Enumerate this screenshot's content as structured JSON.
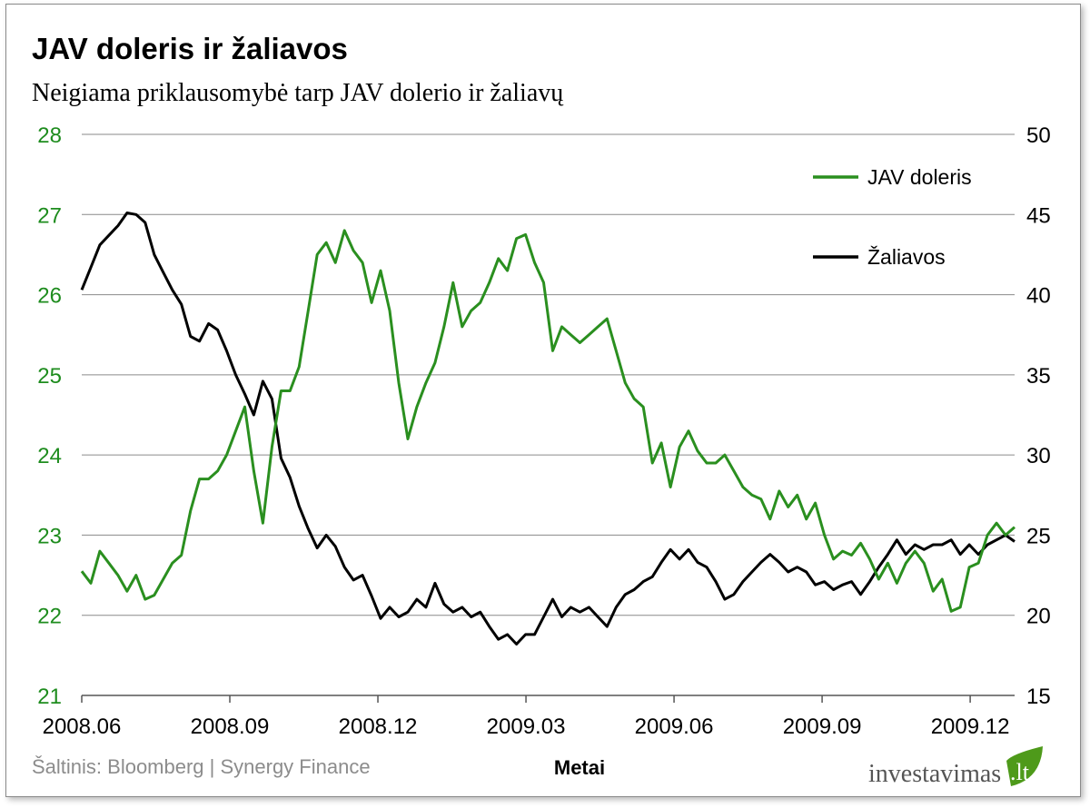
{
  "chart_data": {
    "type": "line",
    "title": "JAV doleris ir žaliavos",
    "subtitle": "Neigiama priklausomybė tarp JAV dolerio ir žaliavų",
    "xlabel": "Metai",
    "x_unit": "months since 2008.06 (values equally spaced, ~weekly)",
    "xlim": [
      0,
      18.9
    ],
    "x_ticks": [
      {
        "value": 0,
        "label": "2008.06"
      },
      {
        "value": 3,
        "label": "2008.09"
      },
      {
        "value": 6,
        "label": "2008.12"
      },
      {
        "value": 9,
        "label": "2009.03"
      },
      {
        "value": 12,
        "label": "2009.06"
      },
      {
        "value": 15,
        "label": "2009.09"
      },
      {
        "value": 18,
        "label": "2009.12"
      }
    ],
    "y_left": {
      "ylim": [
        21,
        28
      ],
      "ticks": [
        "21",
        "22",
        "23",
        "24",
        "25",
        "26",
        "27",
        "28"
      ],
      "color": "#1e8c1e"
    },
    "y_right": {
      "ylim": [
        15,
        50
      ],
      "ticks": [
        "15",
        "20",
        "25",
        "30",
        "35",
        "40",
        "45",
        "50"
      ],
      "color": "#000000"
    },
    "grid": true,
    "legend_position": "top-right",
    "series": [
      {
        "name": "JAV doleris",
        "axis": "left",
        "color": "#2a8f1f",
        "values": [
          22.55,
          22.4,
          22.8,
          22.65,
          22.5,
          22.3,
          22.5,
          22.2,
          22.25,
          22.45,
          22.65,
          22.75,
          23.3,
          23.7,
          23.7,
          23.8,
          24.0,
          24.3,
          24.6,
          23.8,
          23.15,
          24.1,
          24.8,
          24.8,
          25.1,
          25.8,
          26.5,
          26.65,
          26.4,
          26.8,
          26.55,
          26.4,
          25.9,
          26.3,
          25.8,
          24.9,
          24.2,
          24.6,
          24.9,
          25.15,
          25.6,
          26.15,
          25.6,
          25.8,
          25.9,
          26.15,
          26.45,
          26.3,
          26.7,
          26.75,
          26.4,
          26.15,
          25.3,
          25.6,
          25.5,
          25.4,
          25.5,
          25.6,
          25.7,
          25.3,
          24.9,
          24.7,
          24.6,
          23.9,
          24.15,
          23.6,
          24.1,
          24.3,
          24.05,
          23.9,
          23.9,
          24.0,
          23.8,
          23.6,
          23.5,
          23.45,
          23.2,
          23.55,
          23.35,
          23.5,
          23.2,
          23.4,
          23.0,
          22.7,
          22.8,
          22.75,
          22.9,
          22.7,
          22.45,
          22.65,
          22.4,
          22.65,
          22.8,
          22.65,
          22.3,
          22.45,
          22.05,
          22.1,
          22.6,
          22.65,
          23.0,
          23.15,
          23.0,
          23.1
        ]
      },
      {
        "name": "Žaliavos",
        "axis": "right",
        "color": "#000000",
        "values": [
          40.3,
          41.7,
          43.1,
          43.7,
          44.3,
          45.1,
          45.0,
          44.5,
          42.5,
          41.4,
          40.3,
          39.4,
          37.4,
          37.1,
          38.2,
          37.8,
          36.5,
          35.0,
          33.8,
          32.5,
          34.6,
          33.5,
          29.8,
          28.6,
          26.8,
          25.4,
          24.2,
          25.0,
          24.3,
          23.0,
          22.2,
          22.5,
          21.2,
          19.8,
          20.5,
          19.9,
          20.2,
          21.0,
          20.5,
          22.0,
          20.7,
          20.2,
          20.5,
          19.9,
          20.2,
          19.3,
          18.5,
          18.8,
          18.2,
          18.8,
          18.8,
          19.9,
          21.0,
          19.9,
          20.5,
          20.2,
          20.5,
          19.9,
          19.3,
          20.5,
          21.3,
          21.6,
          22.1,
          22.4,
          23.3,
          24.1,
          23.5,
          24.1,
          23.3,
          23.0,
          22.1,
          21.0,
          21.3,
          22.1,
          22.7,
          23.3,
          23.8,
          23.3,
          22.7,
          23.0,
          22.7,
          21.9,
          22.1,
          21.6,
          21.9,
          22.1,
          21.3,
          22.1,
          23.0,
          23.8,
          24.7,
          23.8,
          24.4,
          24.1,
          24.4,
          24.4,
          24.7,
          23.8,
          24.4,
          23.8,
          24.4,
          24.7,
          25.0,
          24.6
        ]
      }
    ]
  },
  "footer": {
    "source": "Šaltinis: Bloomberg | Synergy Finance",
    "logo_text": "investavimas",
    "logo_suffix": ".lt"
  }
}
